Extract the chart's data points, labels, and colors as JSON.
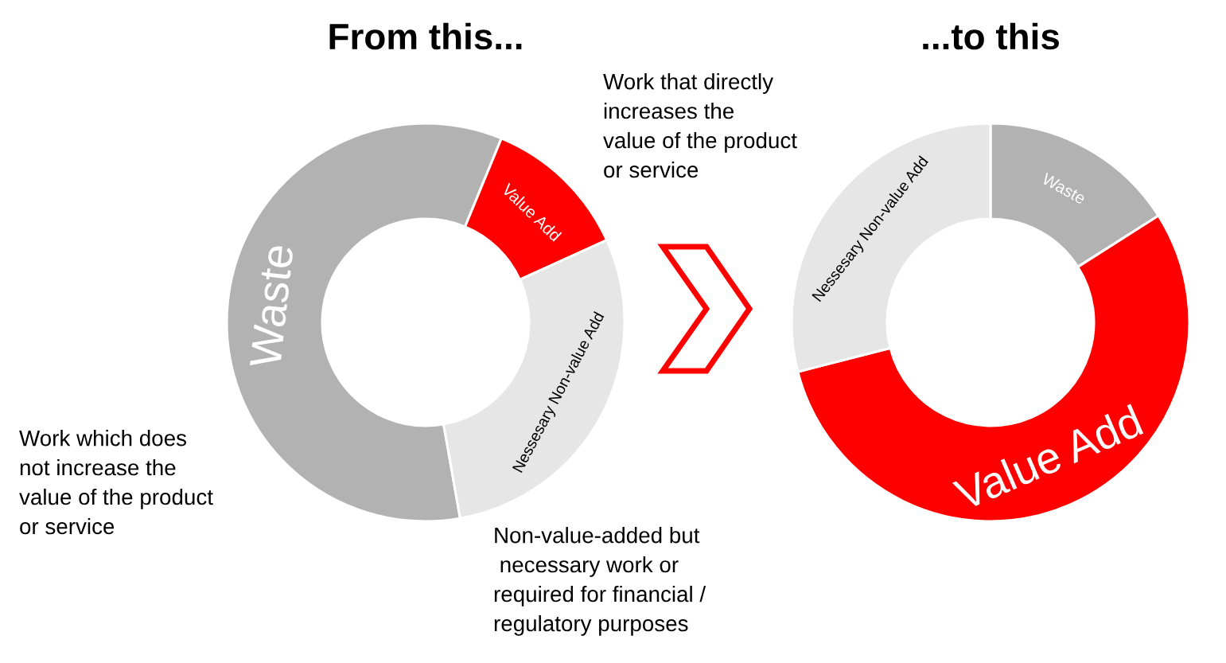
{
  "chart_data": [
    {
      "type": "donut",
      "title": "From this...",
      "categories": [
        "Waste",
        "Value Add",
        "Nessesary Non-value Add"
      ],
      "values": [
        59,
        12,
        29
      ],
      "colors": [
        "#b2b2b2",
        "#ff0000",
        "#e6e6e6"
      ],
      "annotations": [
        "Work which does\nnot increase the\nvalue of the product\nor service",
        "Work that directly\nincreases the\nvalue of the product\nor service",
        "Non-value-added but\n necessary work or\nrequired for financial /\nregulatory purposes"
      ]
    },
    {
      "type": "donut",
      "title": "...to this",
      "categories": [
        "Waste",
        "Value Add",
        "Nessesary Non-value Add"
      ],
      "values": [
        16,
        55,
        29
      ],
      "colors": [
        "#b2b2b2",
        "#ff0000",
        "#e6e6e6"
      ]
    }
  ]
}
